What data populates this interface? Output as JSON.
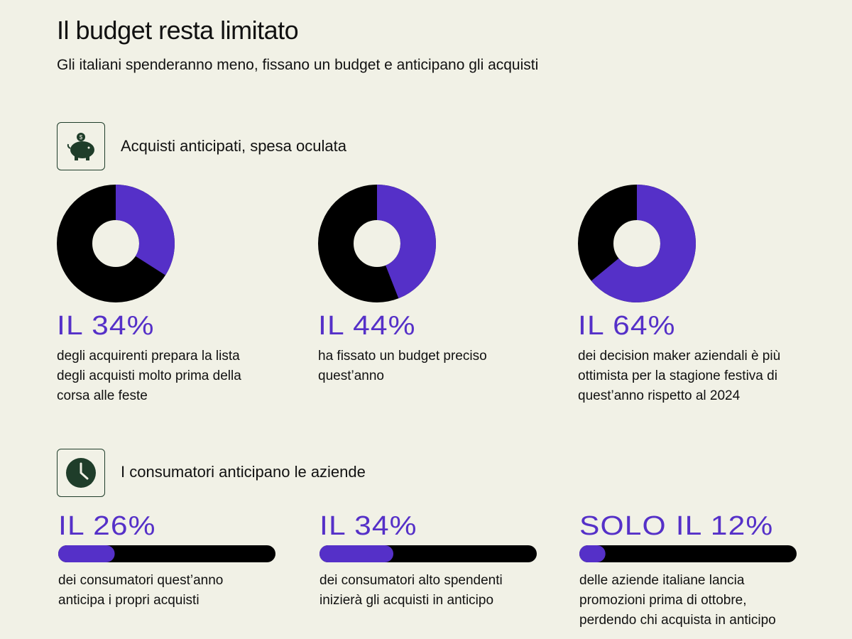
{
  "header": {
    "title": "Il budget resta limitato",
    "subtitle": "Gli italiani spenderanno meno, fissano un budget e anticipano gli acquisti"
  },
  "sections": [
    {
      "heading": "Acquisti anticipati, spesa oculata",
      "type": "donut",
      "color": "#5530c8",
      "track": "#000000",
      "items": [
        {
          "label": "IL 34%",
          "value": 34,
          "description": "degli acquirenti prepara la lista degli acquisti molto prima della corsa alle feste"
        },
        {
          "label": "IL 44%",
          "value": 44,
          "description": "ha fissato un budget preciso quest’anno"
        },
        {
          "label": "IL 64%",
          "value": 64,
          "description": "dei decision maker aziendali è più ottimista per la stagione festiva di quest’anno rispetto al 2024"
        }
      ]
    },
    {
      "heading": "I consumatori anticipano le aziende",
      "type": "progress",
      "color": "#5530c8",
      "track": "#000000",
      "items": [
        {
          "label": "IL 26%",
          "value": 26,
          "description": "dei consumatori quest’anno anticipa i propri acquisti"
        },
        {
          "label": "IL 34%",
          "value": 34,
          "description": "dei consumatori alto spendenti inizierà gli acquisti in anticipo"
        },
        {
          "label": "SOLO IL 12%",
          "value": 12,
          "description": "delle aziende italiane lancia promozioni prima di ottobre, perdendo chi acquista in anticipo"
        }
      ]
    }
  ]
}
